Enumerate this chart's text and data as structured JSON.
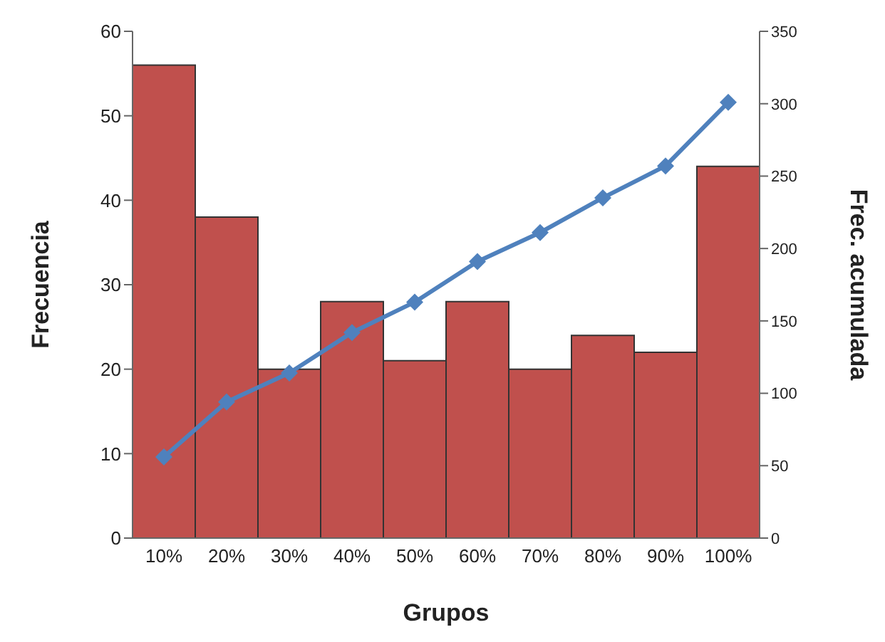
{
  "chart_data": {
    "type": "bar",
    "xlabel": "Grupos",
    "ylabel": "Frecuencia",
    "y2label": "Frec. acumulada",
    "categories": [
      "10%",
      "20%",
      "30%",
      "40%",
      "50%",
      "60%",
      "70%",
      "80%",
      "90%",
      "100%"
    ],
    "series": [
      {
        "color": "#c0504d",
        "values": [
          56,
          38,
          20,
          28,
          21,
          28,
          20,
          24,
          22,
          44
        ]
      },
      {
        "type": "line",
        "axis": "y2",
        "color": "#4f81bd",
        "marker": "diamond",
        "values": [
          56,
          94,
          114,
          142,
          163,
          191,
          211,
          235,
          257,
          301
        ]
      }
    ],
    "ylim": [
      0,
      60
    ],
    "yticks": [
      0,
      10,
      20,
      30,
      40,
      50,
      60
    ],
    "y2lim": [
      0,
      350
    ],
    "y2ticks": [
      0,
      50,
      100,
      150,
      200,
      250,
      300,
      350
    ],
    "grid": false,
    "legend": false
  }
}
